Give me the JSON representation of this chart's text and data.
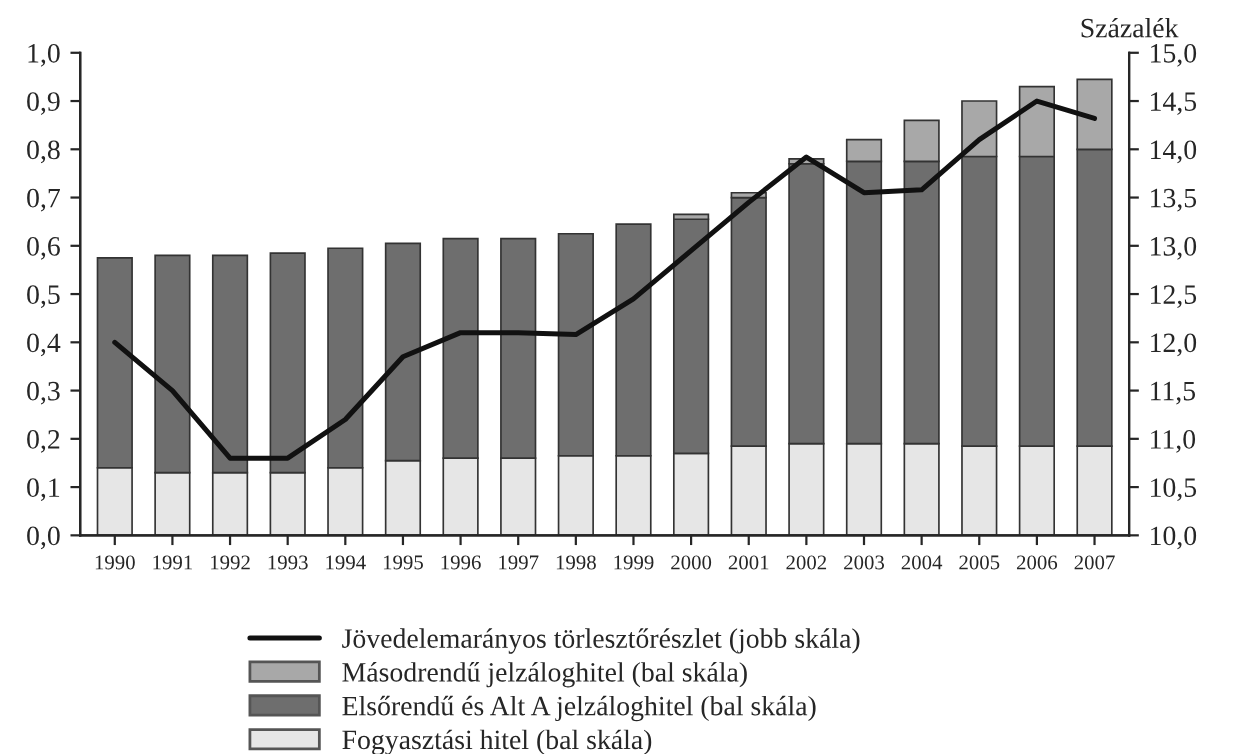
{
  "chart_data": {
    "type": "bar",
    "stacked": true,
    "y2label": "Százalék",
    "categories": [
      "1990",
      "1991",
      "1992",
      "1993",
      "1994",
      "1995",
      "1996",
      "1997",
      "1998",
      "1999",
      "2000",
      "2001",
      "2002",
      "2003",
      "2004",
      "2005",
      "2006",
      "2007"
    ],
    "series": [
      {
        "name": "Fogyasztási hitel (bal skála)",
        "color": "#e6e6e6",
        "values": [
          0.14,
          0.13,
          0.13,
          0.13,
          0.14,
          0.155,
          0.16,
          0.16,
          0.165,
          0.165,
          0.17,
          0.185,
          0.19,
          0.19,
          0.19,
          0.185,
          0.185,
          0.185
        ]
      },
      {
        "name": "Elsőrendű és Alt A jelzáloghitel (bal skála)",
        "color": "#6e6e6e",
        "values": [
          0.435,
          0.45,
          0.45,
          0.455,
          0.455,
          0.45,
          0.455,
          0.455,
          0.46,
          0.48,
          0.485,
          0.515,
          0.58,
          0.585,
          0.585,
          0.6,
          0.6,
          0.615
        ]
      },
      {
        "name": "Másodrendű jelzáloghitel (bal skála)",
        "color": "#a8a8a8",
        "values": [
          null,
          null,
          null,
          null,
          null,
          null,
          null,
          null,
          null,
          null,
          0.01,
          0.01,
          0.01,
          0.045,
          0.085,
          0.115,
          0.145,
          0.145
        ]
      },
      {
        "name": "Jövedelemarányos törlesztőrészlet (jobb skála)",
        "type": "line",
        "axis": "y2",
        "color": "#111111",
        "values": [
          12.0,
          11.5,
          10.8,
          10.8,
          11.2,
          11.85,
          12.1,
          12.1,
          12.08,
          12.45,
          12.95,
          13.45,
          13.92,
          13.55,
          13.58,
          14.1,
          14.5,
          14.32
        ]
      }
    ],
    "ylim": [
      0,
      1.0
    ],
    "yticks": [
      {
        "value": 0,
        "label": "0,0"
      },
      {
        "value": 0.1,
        "label": "0,1"
      },
      {
        "value": 0.2,
        "label": "0,2"
      },
      {
        "value": 0.3,
        "label": "0,3"
      },
      {
        "value": 0.4,
        "label": "0,4"
      },
      {
        "value": 0.5,
        "label": "0,5"
      },
      {
        "value": 0.6,
        "label": "0,6"
      },
      {
        "value": 0.7,
        "label": "0,7"
      },
      {
        "value": 0.8,
        "label": "0,8"
      },
      {
        "value": 0.9,
        "label": "0,9"
      },
      {
        "value": 1.0,
        "label": "1,0"
      }
    ],
    "y2lim": [
      10.0,
      15.0
    ],
    "y2ticks": [
      {
        "value": 10,
        "label": "10,0"
      },
      {
        "value": 10.5,
        "label": "10,5"
      },
      {
        "value": 11,
        "label": "11,0"
      },
      {
        "value": 11.5,
        "label": "11,5"
      },
      {
        "value": 12,
        "label": "12,0"
      },
      {
        "value": 12.5,
        "label": "12,5"
      },
      {
        "value": 13,
        "label": "13,0"
      },
      {
        "value": 13.5,
        "label": "13,5"
      },
      {
        "value": 14,
        "label": "14,0"
      },
      {
        "value": 14.5,
        "label": "14,5"
      },
      {
        "value": 15,
        "label": "15,0"
      }
    ],
    "grid": false,
    "legend": "bottom"
  }
}
